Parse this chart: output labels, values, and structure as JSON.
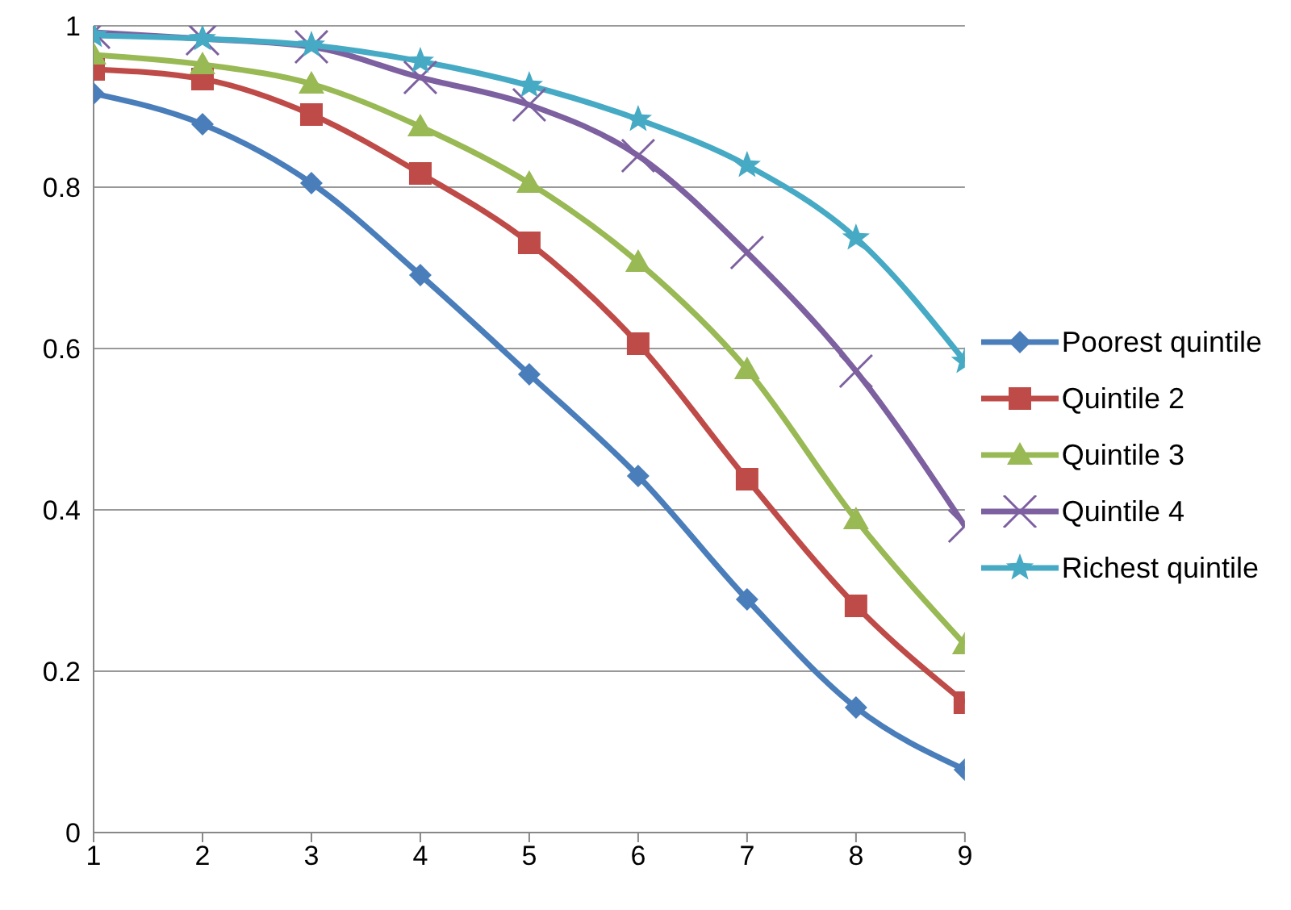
{
  "chart_data": {
    "type": "line",
    "x": [
      1,
      2,
      3,
      4,
      5,
      6,
      7,
      8,
      9
    ],
    "xlim": [
      1,
      9
    ],
    "xticks": [
      1,
      2,
      3,
      4,
      5,
      6,
      7,
      8,
      9
    ],
    "ylim": [
      0,
      1
    ],
    "yticks": [
      0,
      0.2,
      0.4,
      0.6,
      0.8,
      1
    ],
    "grid": "y",
    "legend": "right",
    "line_style": "solid",
    "series": [
      {
        "name": "Poorest quintile",
        "color": "#4a7ebb",
        "marker": "diamond",
        "values": [
          0.916,
          0.878,
          0.805,
          0.691,
          0.568,
          0.442,
          0.289,
          0.155,
          0.078
        ]
      },
      {
        "name": "Quintile 2",
        "color": "#be4b48",
        "marker": "square",
        "values": [
          0.946,
          0.934,
          0.89,
          0.817,
          0.731,
          0.606,
          0.438,
          0.281,
          0.161
        ]
      },
      {
        "name": "Quintile 3",
        "color": "#98b954",
        "marker": "triangle",
        "values": [
          0.964,
          0.952,
          0.928,
          0.875,
          0.805,
          0.707,
          0.574,
          0.388,
          0.233
        ]
      },
      {
        "name": "Quintile 4",
        "color": "#7d60a0",
        "marker": "cross",
        "values": [
          0.992,
          0.984,
          0.974,
          0.936,
          0.902,
          0.839,
          0.719,
          0.572,
          0.38
        ]
      },
      {
        "name": "Richest quintile",
        "color": "#46aac5",
        "marker": "star",
        "values": [
          0.988,
          0.984,
          0.976,
          0.956,
          0.926,
          0.884,
          0.827,
          0.737,
          0.584
        ]
      }
    ]
  }
}
